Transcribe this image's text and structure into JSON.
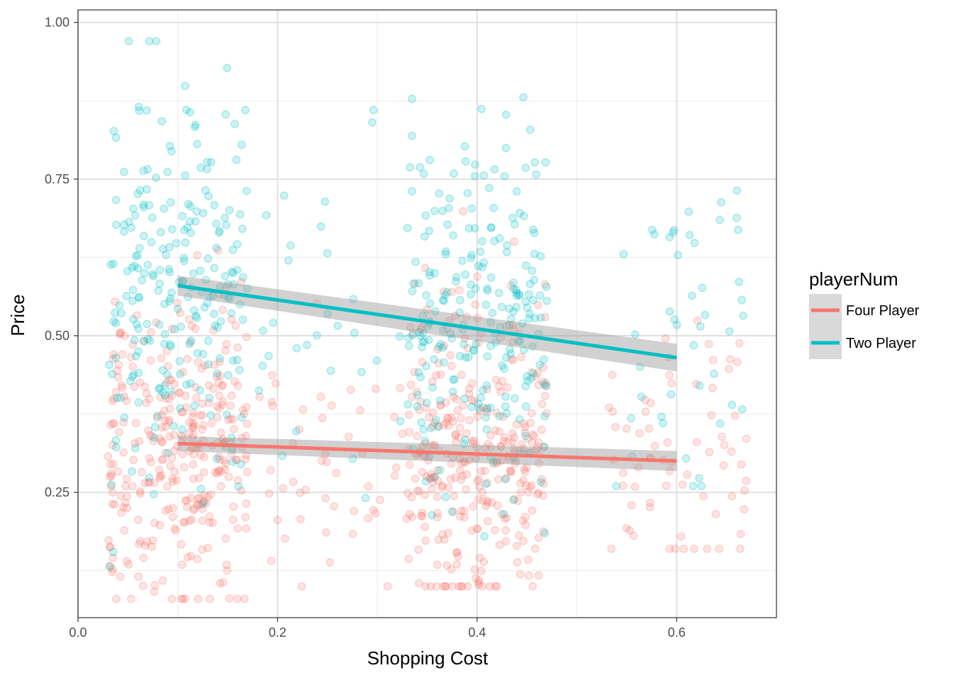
{
  "chart_data": {
    "type": "scatter",
    "xlabel": "Shopping Cost",
    "ylabel": "Price",
    "xlim": [
      0.0,
      0.7
    ],
    "ylim": [
      0.05,
      1.02
    ],
    "x_ticks": [
      "0.0",
      "0.2",
      "0.4",
      "0.6"
    ],
    "y_ticks": [
      "0.25",
      "0.50",
      "0.75",
      "1.00"
    ],
    "grid": true,
    "legend_position": "right",
    "legend_title": "playerNum",
    "series": [
      {
        "name": "Four Player",
        "color": "#F8766D",
        "trend": {
          "x": [
            0.1,
            0.6
          ],
          "y": [
            0.328,
            0.3
          ],
          "ci": [
            0.012,
            0.016
          ]
        },
        "clusters": [
          {
            "x": [
              0.03,
              0.17
            ],
            "y_mean": 0.32,
            "y_sd": 0.11,
            "y_range": [
              0.08,
              0.72
            ],
            "n": 330
          },
          {
            "x": [
              0.18,
              0.33
            ],
            "y_mean": 0.3,
            "y_sd": 0.1,
            "y_range": [
              0.1,
              0.73
            ],
            "n": 50
          },
          {
            "x": [
              0.33,
              0.47
            ],
            "y_mean": 0.31,
            "y_sd": 0.12,
            "y_range": [
              0.1,
              0.72
            ],
            "n": 330
          },
          {
            "x": [
              0.53,
              0.67
            ],
            "y_mean": 0.3,
            "y_sd": 0.11,
            "y_range": [
              0.16,
              0.72
            ],
            "n": 70
          }
        ]
      },
      {
        "name": "Two Player",
        "color": "#00BFC4",
        "trend": {
          "x": [
            0.1,
            0.6
          ],
          "y": [
            0.58,
            0.465
          ],
          "ci": [
            0.016,
            0.022
          ]
        },
        "clusters": [
          {
            "x": [
              0.03,
              0.17
            ],
            "y_mean": 0.58,
            "y_sd": 0.17,
            "y_range": [
              0.1,
              0.97
            ],
            "n": 240
          },
          {
            "x": [
              0.18,
              0.33
            ],
            "y_mean": 0.52,
            "y_sd": 0.15,
            "y_range": [
              0.18,
              0.86
            ],
            "n": 30
          },
          {
            "x": [
              0.33,
              0.47
            ],
            "y_mean": 0.52,
            "y_sd": 0.16,
            "y_range": [
              0.18,
              0.9
            ],
            "n": 240
          },
          {
            "x": [
              0.53,
              0.67
            ],
            "y_mean": 0.5,
            "y_sd": 0.13,
            "y_range": [
              0.26,
              0.8
            ],
            "n": 45
          }
        ]
      }
    ]
  }
}
